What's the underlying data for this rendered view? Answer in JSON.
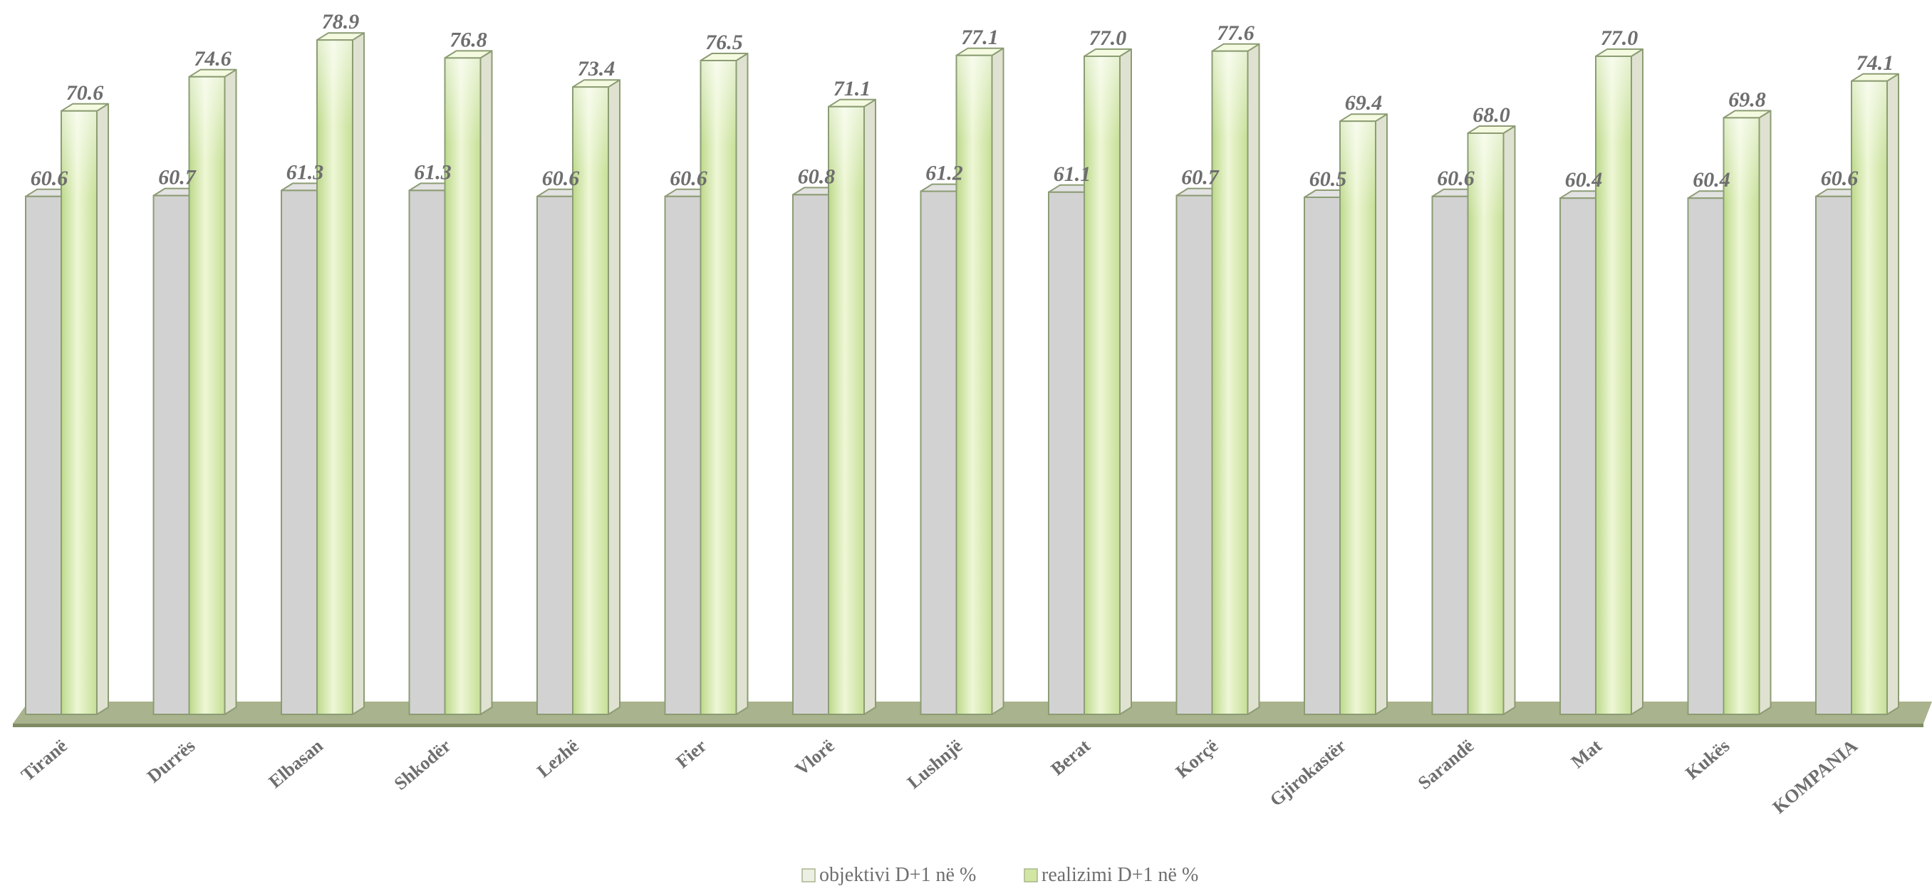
{
  "chart_data": {
    "type": "bar",
    "title": "",
    "xlabel": "",
    "ylabel": "",
    "ylim": [
      0,
      80
    ],
    "grid": false,
    "legend_position": "bottom",
    "categories": [
      "Tiranë",
      "Durrës",
      "Elbasan",
      "Shkodër",
      "Lezhë",
      "Fier",
      "Vlorë",
      "Lushnjë",
      "Berat",
      "Korçë",
      "Gjirokastër",
      "Sarandë",
      "Mat",
      "Kukës",
      "KOMPANIA"
    ],
    "series": [
      {
        "name": "objektivi D+1 në %",
        "values": [
          60.6,
          60.7,
          61.3,
          61.3,
          60.6,
          60.6,
          60.8,
          61.2,
          61.1,
          60.7,
          60.5,
          60.6,
          60.4,
          60.4,
          60.6
        ],
        "labels": [
          "60.6",
          "60.7",
          "61.3",
          "61.3",
          "60.6",
          "60.6",
          "60.8",
          "61.2",
          "61.1",
          "60.7",
          "60.5",
          "60.6",
          "60.4",
          "60.4",
          "60.6"
        ]
      },
      {
        "name": "realizimi D+1 në %",
        "values": [
          70.6,
          74.6,
          78.9,
          76.8,
          73.4,
          76.5,
          71.1,
          77.1,
          77.0,
          77.6,
          69.4,
          68.0,
          77.0,
          69.8,
          74.1
        ],
        "labels": [
          "70.6",
          "74.6",
          "78.9",
          "76.8",
          "73.4",
          "76.5",
          "71.1",
          "77.1",
          "77.0",
          "77.6",
          "69.4",
          "68.0",
          "77.0",
          "69.8",
          "74.1"
        ]
      }
    ],
    "colors": {
      "series_objektivi_face": "#d2d2d2",
      "series_objektivi_edge": "#8c9c74",
      "series_realizimi_face": "#d2e6a4",
      "series_realizimi_light": "#f4fadf",
      "series_realizimi_edge": "#8c9c74",
      "floor": "#9aa67a",
      "label_text": "#6e6e6e"
    }
  }
}
